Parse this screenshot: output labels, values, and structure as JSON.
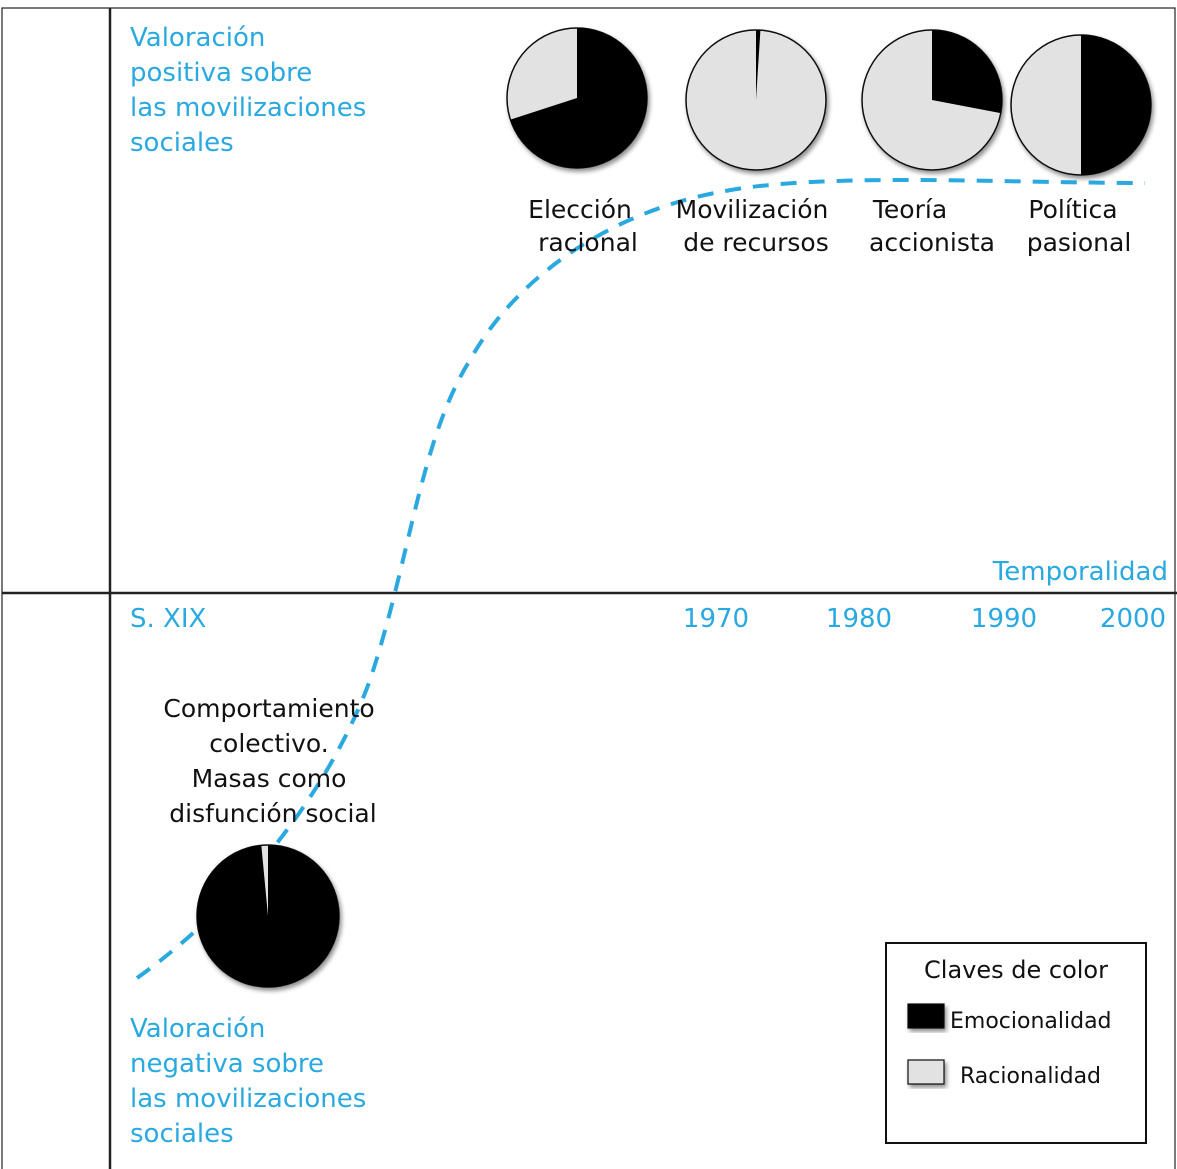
{
  "colors": {
    "accent": "#29a9e0",
    "emotion": "#000000",
    "reason": "#e2e2e2",
    "axis": "#222222"
  },
  "labels": {
    "top_y": [
      "Valoración",
      "positiva sobre",
      "las movilizaciones",
      "sociales"
    ],
    "bottom_y": [
      "Valoración",
      "negativa sobre",
      "las movilizaciones",
      "sociales"
    ],
    "x_axis": "Temporalidad",
    "ticks": [
      "S. XIX",
      "1970",
      "1980",
      "1990",
      "2000"
    ]
  },
  "stages": [
    {
      "name_lines": [
        "Elección",
        "racional"
      ],
      "emotion_share": 0.7
    },
    {
      "name_lines": [
        "Movilización",
        "de recursos"
      ],
      "emotion_share": 0.01
    },
    {
      "name_lines": [
        "Teoría",
        "accionista"
      ],
      "emotion_share": 0.28
    },
    {
      "name_lines": [
        "Política",
        "pasional"
      ],
      "emotion_share": 0.5
    },
    {
      "name_lines": [
        "Comportamiento",
        "colectivo.",
        "Masas como",
        "disfunción social"
      ],
      "emotion_share": 0.985
    }
  ],
  "legend": {
    "title": "Claves de color",
    "items": [
      {
        "label": "Emocionalidad",
        "color": "#000000"
      },
      {
        "label": "Racionalidad",
        "color": "#e2e2e2"
      }
    ]
  }
}
